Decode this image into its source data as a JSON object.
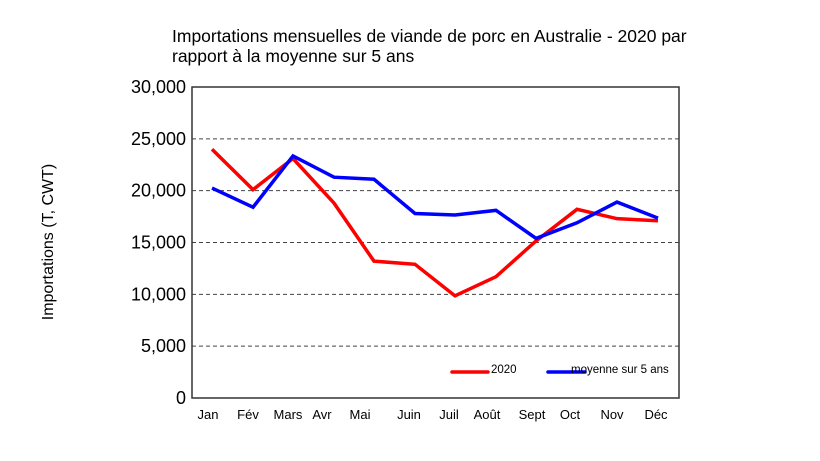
{
  "chart_data": {
    "type": "line",
    "title_lines": [
      "Importations mensuelles de viande de porc en Australie - 2020 par",
      "rapport à la moyenne sur 5 ans"
    ],
    "xlabel": "",
    "ylabel": "Importations (T, CWT)",
    "categories": [
      "Jan",
      "Fév",
      "Mars",
      "Avr",
      "Mai",
      "Juin",
      "Juil",
      "Août",
      "Sept",
      "Oct",
      "Nov",
      "Déc"
    ],
    "ylim": [
      0,
      30000
    ],
    "yticks": [
      0,
      5000,
      10000,
      15000,
      20000,
      25000,
      30000
    ],
    "ytick_labels": [
      "0",
      "5,000",
      "10,000",
      "15,000",
      "20,000",
      "25,000",
      "30,000"
    ],
    "grid": "horizontal dashed",
    "legend_position": "bottom-right",
    "series": [
      {
        "name": "2020",
        "color": "#ff0000",
        "values": [
          24000,
          20100,
          23100,
          18800,
          13200,
          12900,
          9850,
          11700,
          15150,
          18200,
          17300,
          17100
        ]
      },
      {
        "name": "moyenne sur 5 ans",
        "color": "#0000ff",
        "values": [
          20250,
          18400,
          23350,
          21300,
          21100,
          17800,
          17650,
          18100,
          15400,
          16900,
          18900,
          17350
        ]
      }
    ]
  }
}
